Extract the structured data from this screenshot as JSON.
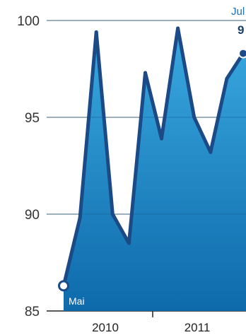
{
  "chart_data": {
    "type": "area",
    "title": "",
    "xlabel": "",
    "ylabel": "",
    "ylim": [
      85,
      100
    ],
    "y_ticks": [
      "100",
      "95",
      "90",
      "85"
    ],
    "x_ticks": [
      "2010",
      "2011"
    ],
    "grid": true,
    "series": [
      {
        "values": [
          86.3,
          89.8,
          99.4,
          90.0,
          88.5,
          97.3,
          93.9,
          99.6,
          95.0,
          93.2,
          97.0,
          98.3
        ]
      }
    ],
    "annotations": {
      "start_label": "Mai",
      "end_label": "Jul",
      "end_value": "9"
    },
    "colors": {
      "fill_top": "#3aa9e0",
      "fill_bottom": "#0e6aab",
      "line": "#1c4a86",
      "grid": "#9a9a9a"
    }
  }
}
